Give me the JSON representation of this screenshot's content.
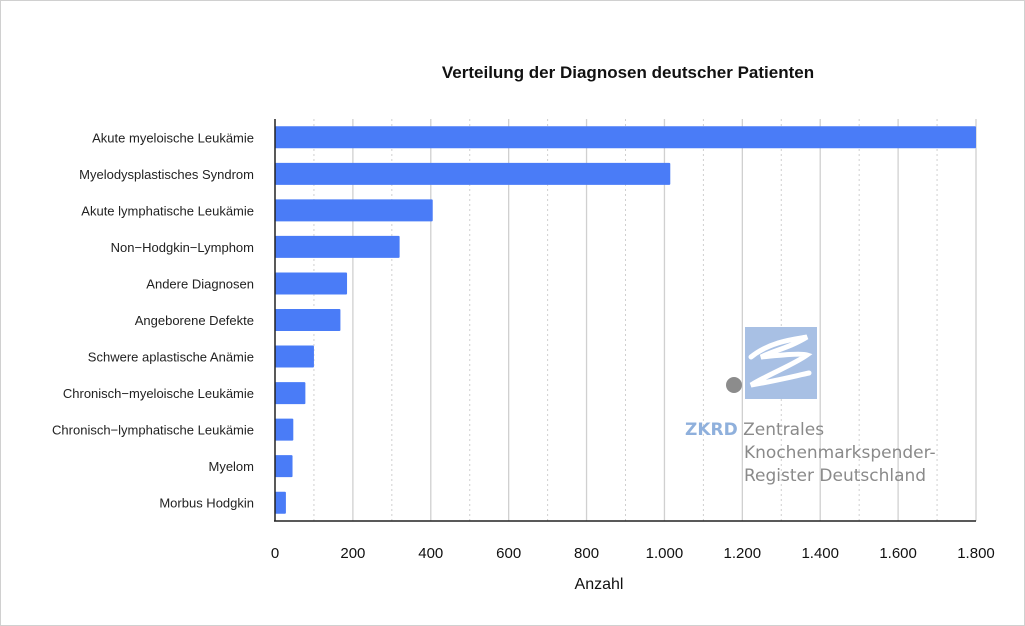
{
  "chart_data": {
    "type": "bar",
    "orientation": "horizontal",
    "title": "Verteilung der Diagnosen deutscher Patienten",
    "xlabel": "Anzahl",
    "ylabel": "",
    "xlim": [
      0,
      1800
    ],
    "xticks": [
      "0",
      "200",
      "400",
      "600",
      "800",
      "1.000",
      "1.200",
      "1.400",
      "1.600",
      "1.800"
    ],
    "grid": true,
    "bar_color": "#4a7cf7",
    "categories": [
      "Akute myeloische Leukämie",
      "Myelodysplastisches Syndrom",
      "Akute lymphatische Leukämie",
      "Non−Hodgkin−Lymphom",
      "Andere Diagnosen",
      "Angeborene Defekte",
      "Schwere aplastische Anämie",
      "Chronisch−myeloische Leukämie",
      "Chronisch−lymphatische Leukämie",
      "Myelom",
      "Morbus Hodgkin"
    ],
    "values": [
      1800,
      1015,
      405,
      320,
      185,
      168,
      100,
      78,
      47,
      45,
      28
    ]
  },
  "logo": {
    "brand": "ZKRD",
    "line1": "Zentrales",
    "line2": "Knochenmarkspender-",
    "line3": "Register Deutschland",
    "color": "#8fb0dc"
  }
}
